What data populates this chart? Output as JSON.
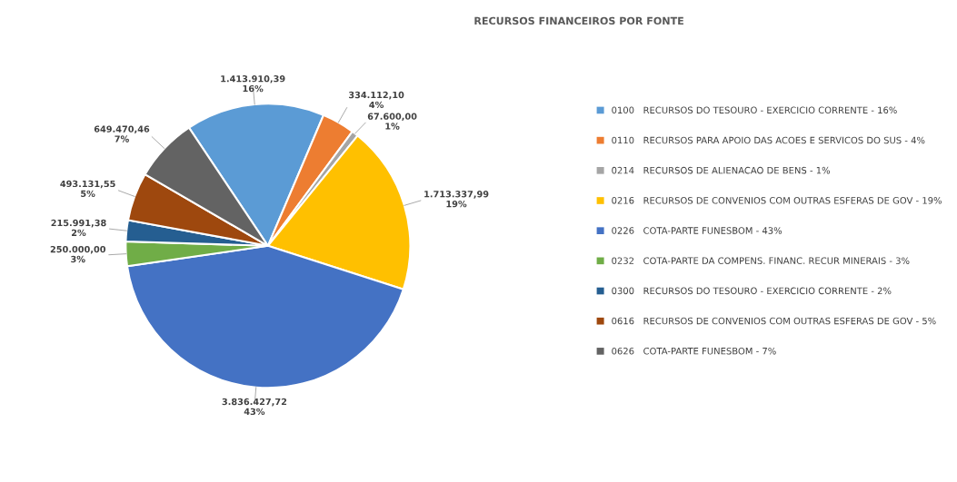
{
  "chart_data": {
    "type": "pie",
    "title": "RECURSOS FINANCEIROS POR FONTE",
    "categories": [
      "0100   RECURSOS DO TESOURO - EXERCICIO CORRENTE - 16%",
      "0110   RECURSOS PARA APOIO DAS ACOES E SERVICOS DO SUS - 4%",
      "0214   RECURSOS DE ALIENACAO DE BENS - 1%",
      "0216   RECURSOS DE CONVENIOS COM OUTRAS ESFERAS DE GOV - 19%",
      "0226   COTA-PARTE FUNESBOM - 43%",
      "0232   COTA-PARTE DA COMPENS. FINANC. RECUR MINERAIS - 3%",
      "0300   RECURSOS DO TESOURO - EXERCICIO CORRENTE - 2%",
      "0616   RECURSOS DE CONVENIOS COM OUTRAS ESFERAS DE GOV - 5%",
      "0626   COTA-PARTE FUNESBOM - 7%"
    ],
    "values": [
      1413910.39,
      334112.1,
      67600.0,
      1713337.99,
      3836427.72,
      250000.0,
      215991.38,
      493131.55,
      649470.46
    ],
    "value_labels": [
      "1.413.910,39\n16%",
      "334.112,10\n4%",
      "67.600,00\n1%",
      "1.713.337,99\n19%",
      "3.836.427,72\n43%",
      "250.000,00\n3%",
      "215.991,38\n2%",
      "493.131,55\n5%",
      "649.470,46\n7%"
    ],
    "colors": [
      "#5b9bd5",
      "#ed7d31",
      "#a5a5a5",
      "#ffc000",
      "#4472c4",
      "#70ad47",
      "#255e91",
      "#9e480e",
      "#636363"
    ],
    "legend": "right"
  }
}
